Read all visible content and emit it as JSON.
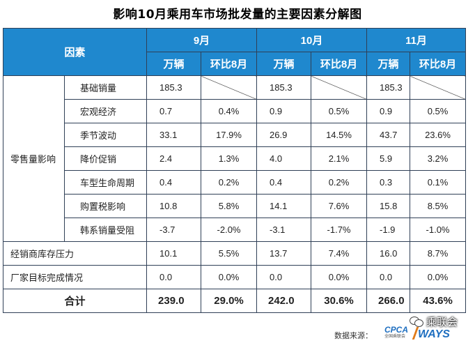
{
  "title": "影响10月乘用车市场批发量的主要因素分解图",
  "table": {
    "factor_header": "因素",
    "months": [
      "9月",
      "10月",
      "11月"
    ],
    "unit_label": "万辆",
    "mom_label": "环比8月",
    "retail_group": "零售量影响",
    "rows": [
      {
        "name": "基础销量",
        "v": [
          "185.3",
          "185.3",
          "185.3"
        ],
        "p": [
          "",
          "",
          ""
        ]
      },
      {
        "name": "宏观经济",
        "v": [
          "0.7",
          "0.9",
          "0.9"
        ],
        "p": [
          "0.4%",
          "0.5%",
          "0.5%"
        ]
      },
      {
        "name": "季节波动",
        "v": [
          "33.1",
          "26.9",
          "43.7"
        ],
        "p": [
          "17.9%",
          "14.5%",
          "23.6%"
        ]
      },
      {
        "name": "降价促销",
        "v": [
          "2.4",
          "4.0",
          "5.9"
        ],
        "p": [
          "1.3%",
          "2.1%",
          "3.2%"
        ]
      },
      {
        "name": "车型生命周期",
        "v": [
          "0.4",
          "0.4",
          "0.3"
        ],
        "p": [
          "0.2%",
          "0.2%",
          "0.1%"
        ]
      },
      {
        "name": "购置税影响",
        "v": [
          "10.8",
          "14.1",
          "15.8"
        ],
        "p": [
          "5.8%",
          "7.6%",
          "8.5%"
        ]
      },
      {
        "name": "韩系销量受阻",
        "v": [
          "-3.7",
          "-3.1",
          "-1.9"
        ],
        "p": [
          "-2.0%",
          "-1.7%",
          "-1.0%"
        ]
      }
    ],
    "dealer": {
      "name": "经销商库存压力",
      "v": [
        "10.1",
        "13.7",
        "16.0"
      ],
      "p": [
        "5.5%",
        "7.4%",
        "8.7%"
      ]
    },
    "factory": {
      "name": "厂家目标完成情况",
      "v": [
        "0.0",
        "0.0",
        "0.0"
      ],
      "p": [
        "0.0%",
        "0.0%",
        "0.0%"
      ]
    },
    "total": {
      "name": "合计",
      "v": [
        "239.0",
        "242.0",
        "266.0"
      ],
      "p": [
        "29.0%",
        "30.6%",
        "43.6%"
      ]
    }
  },
  "footer": {
    "source_label": "数据来源：",
    "cpca": "CPCA",
    "cpca_sub": "全国乘联会",
    "ways": "WAYS",
    "wechat": "乘联会",
    "wechat_icon": "wechat-icon"
  },
  "colors": {
    "header_bg": "#1f88ce",
    "border": "#2f3f56"
  }
}
